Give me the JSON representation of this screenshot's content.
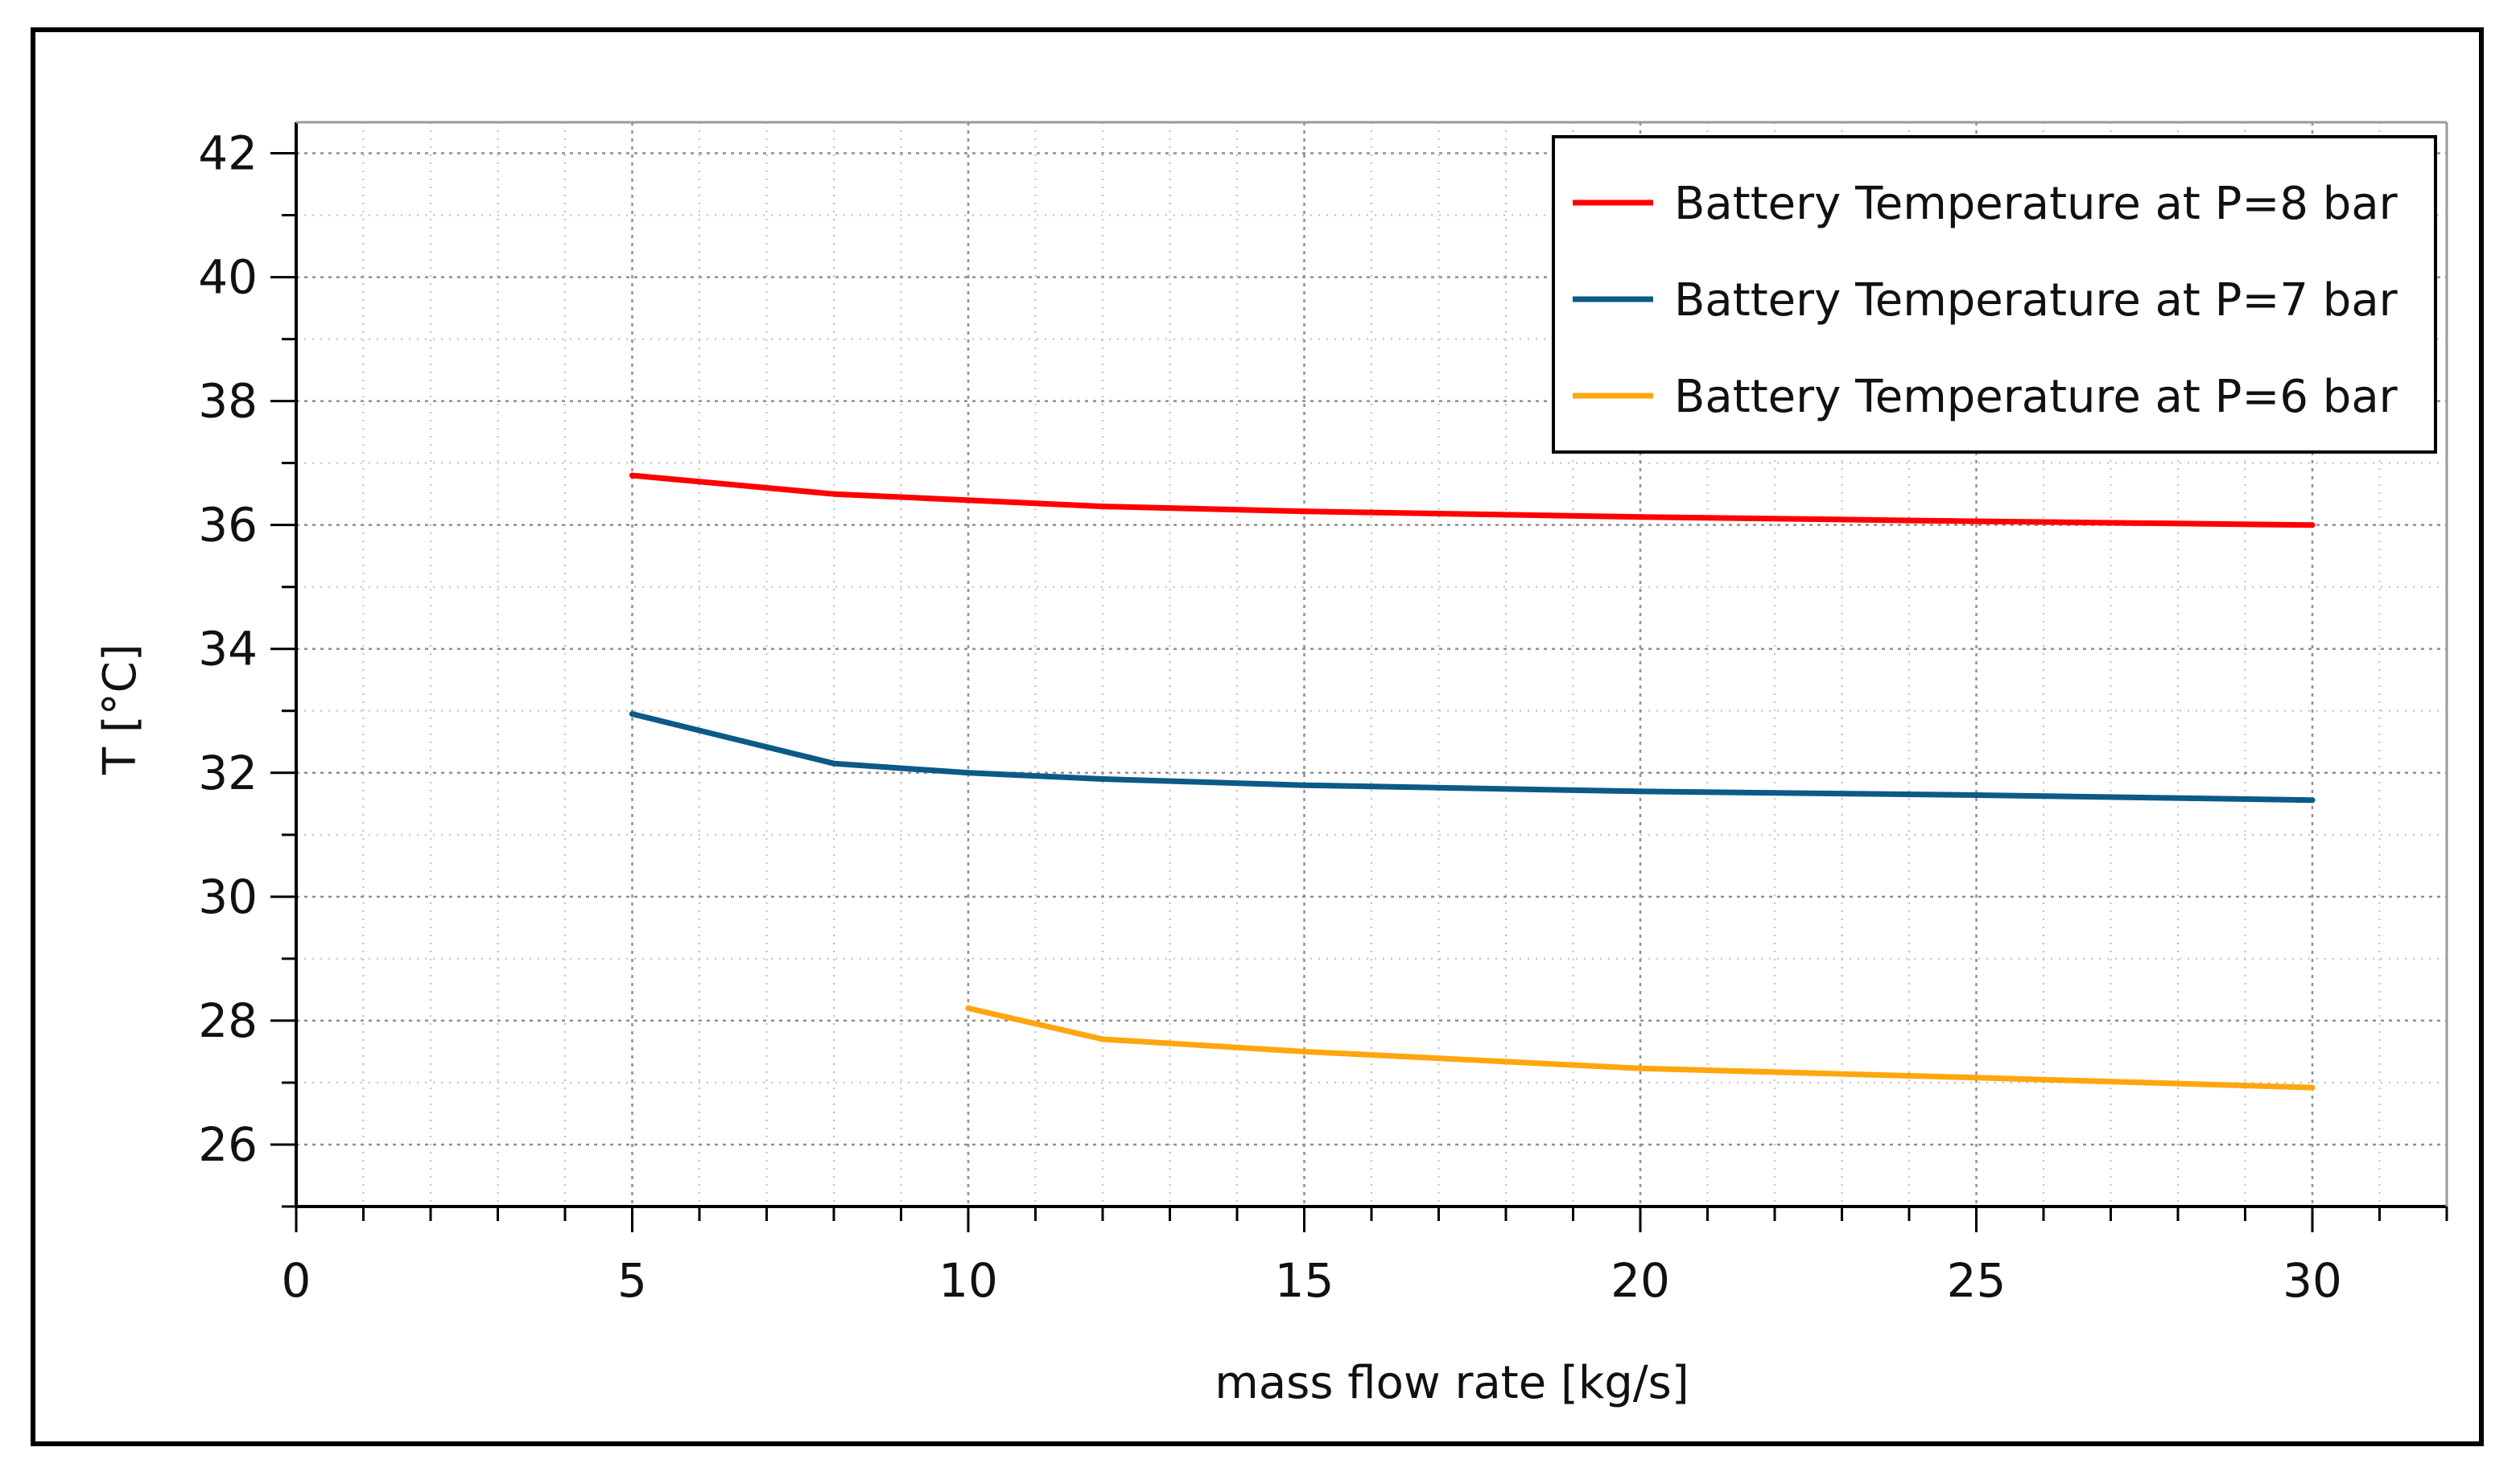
{
  "chart_data": {
    "type": "line",
    "title": "",
    "xlabel": "mass flow rate [kg/s]",
    "ylabel": "T [°C]",
    "xlim": [
      0,
      32
    ],
    "ylim": [
      25,
      42.5
    ],
    "xticks": [
      0,
      5,
      10,
      15,
      20,
      25,
      30
    ],
    "yticks": [
      26,
      28,
      30,
      32,
      34,
      36,
      38,
      40,
      42
    ],
    "grid": true,
    "legend_position": "top-right",
    "series": [
      {
        "name": "Battery Temperature at P=8 bar",
        "color": "#ff0000",
        "x": [
          5,
          8,
          10,
          12,
          15,
          20,
          25,
          30
        ],
        "y": [
          36.8,
          36.5,
          36.4,
          36.3,
          36.22,
          36.13,
          36.06,
          36.0
        ]
      },
      {
        "name": "Battery Temperature at P=7 bar",
        "color": "#0b5a87",
        "x": [
          5,
          8,
          10,
          12,
          15,
          20,
          25,
          30
        ],
        "y": [
          32.95,
          32.15,
          32.0,
          31.9,
          31.8,
          31.7,
          31.64,
          31.56
        ]
      },
      {
        "name": "Battery Temperature at P=6 bar",
        "color": "#ffa60f",
        "x": [
          10,
          12,
          15,
          20,
          25,
          30
        ],
        "y": [
          28.2,
          27.7,
          27.5,
          27.23,
          27.08,
          26.92
        ]
      }
    ]
  }
}
